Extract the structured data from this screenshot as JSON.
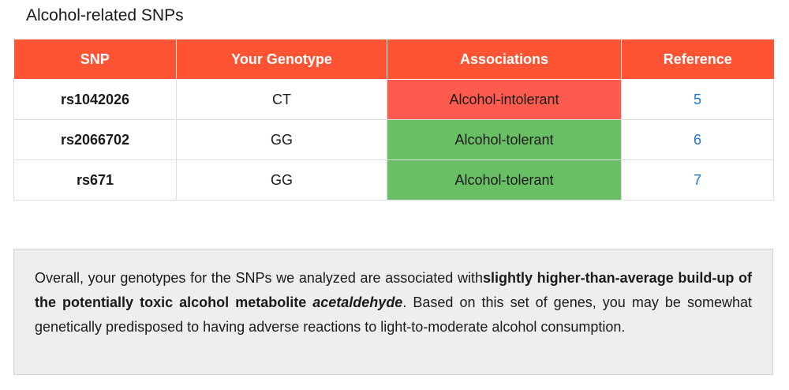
{
  "title": "Alcohol-related SNPs",
  "table": {
    "headers": [
      "SNP",
      "Your Genotype",
      "Associations",
      "Reference"
    ],
    "rows": [
      {
        "snp": "rs1042026",
        "genotype": "CT",
        "association": "Alcohol-intolerant",
        "reference": "5"
      },
      {
        "snp": "rs2066702",
        "genotype": "GG",
        "association": "Alcohol-tolerant",
        "reference": "6"
      },
      {
        "snp": "rs671",
        "genotype": "GG",
        "association": "Alcohol-tolerant",
        "reference": "7"
      }
    ]
  },
  "summary": {
    "text_before": "Overall, your genotypes for the SNPs we analyzed are associated with",
    "bold": "slightly higher-than-average build-up of the potentially toxic alcohol metabolite",
    "bold_italic": "acetaldehyde",
    "text_after": ". Based on this set of genes, you may be somewhat genetically predisposed to having adverse reactions to light-to-moderate alcohol consumption."
  },
  "colors": {
    "header": "#fe5434",
    "intolerant": "#fe5b4e",
    "tolerant": "#69bf64",
    "link": "#1d72d6",
    "summary_bg": "#eeeeee"
  }
}
